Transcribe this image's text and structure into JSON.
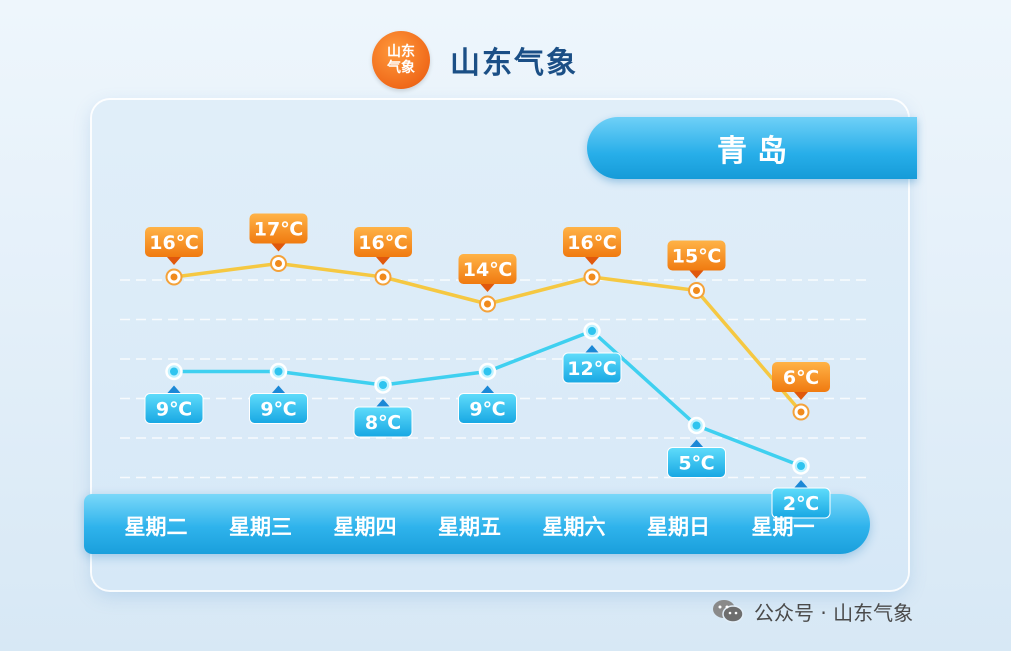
{
  "header": {
    "logo_line1": "山东",
    "logo_line2": "气象",
    "title": "山东气象"
  },
  "city": "青岛",
  "footer": {
    "text": "公众号 · 山东气象",
    "icon": "wechat-icon"
  },
  "colors": {
    "high": "#f5c842",
    "high_label": "#f08a1c",
    "low": "#3fd0f0",
    "low_label": "#1fb0e6",
    "accent": "#1aa3e0"
  },
  "chart_data": {
    "type": "line",
    "categories": [
      "星期二",
      "星期三",
      "星期四",
      "星期五",
      "星期六",
      "星期日",
      "星期一"
    ],
    "series": [
      {
        "values": [
          16,
          17,
          16,
          14,
          16,
          15,
          6
        ]
      },
      {
        "values": [
          9,
          9,
          8,
          9,
          12,
          5,
          2
        ]
      }
    ],
    "unit": "℃",
    "grid": true
  }
}
